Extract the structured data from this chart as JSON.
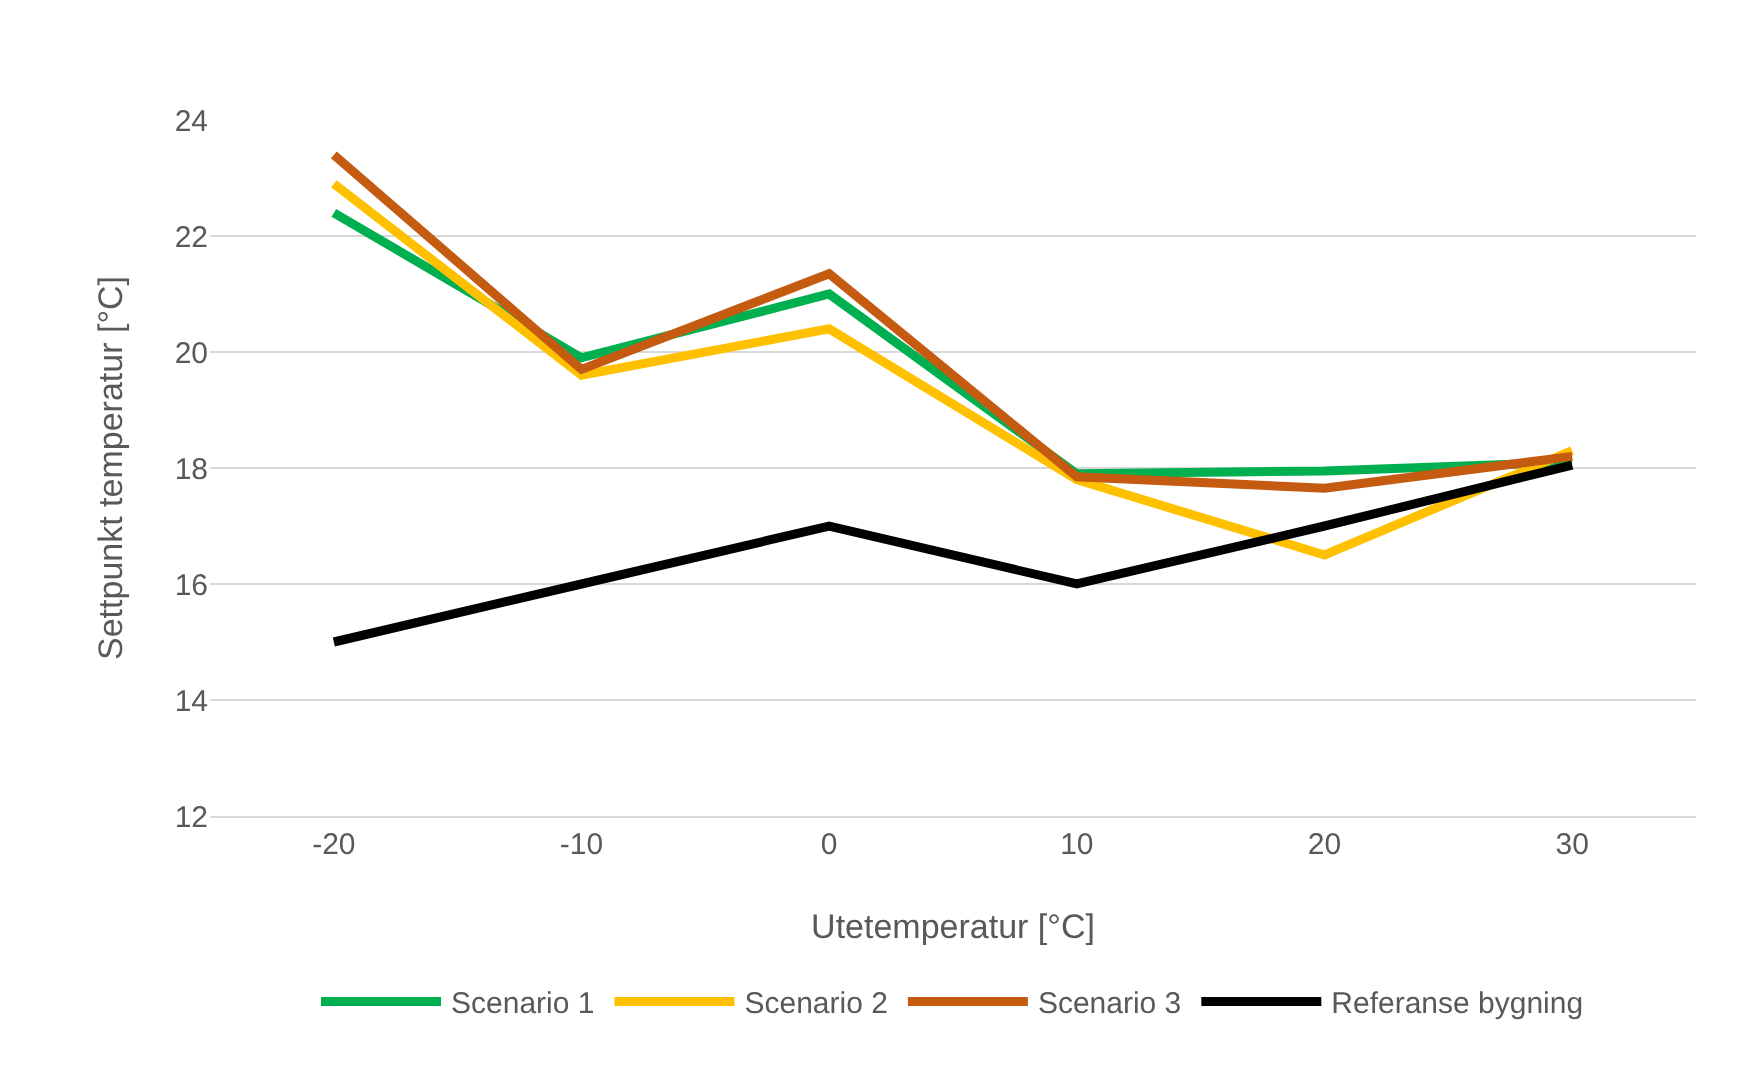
{
  "chart_data": {
    "type": "line",
    "xlabel": "Utetemperatur [°C]",
    "ylabel": "Settpunkt temperatur [°C]",
    "categories": [
      "-20",
      "-10",
      "0",
      "10",
      "20",
      "30"
    ],
    "series": [
      {
        "name": "Scenario 1",
        "color": "#00b050",
        "values": [
          22.4,
          19.9,
          21.0,
          17.9,
          17.95,
          18.1
        ]
      },
      {
        "name": "Scenario 2",
        "color": "#ffc000",
        "values": [
          22.9,
          19.6,
          20.4,
          17.8,
          16.5,
          18.3
        ]
      },
      {
        "name": "Scenario 3",
        "color": "#c55a11",
        "values": [
          23.4,
          19.7,
          21.35,
          17.85,
          17.65,
          18.2
        ]
      },
      {
        "name": "Referanse bygning",
        "color": "#000000",
        "values": [
          15,
          16,
          17,
          16,
          17,
          18.05
        ]
      }
    ],
    "ylim": [
      12,
      24
    ],
    "yticks": [
      12,
      14,
      16,
      18,
      20,
      22,
      24
    ],
    "grid": "y",
    "legend": "bottom",
    "marker": "none",
    "line_style": "solid"
  }
}
